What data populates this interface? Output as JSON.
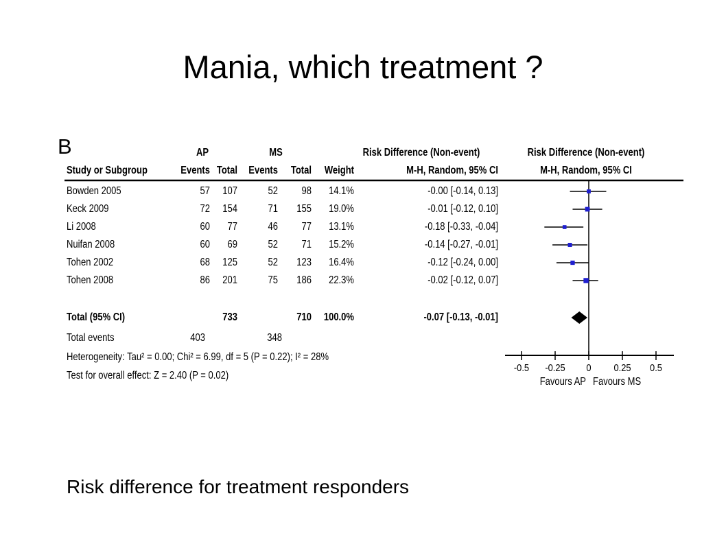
{
  "slide": {
    "title": "Mania, which treatment ?",
    "caption": "Risk difference for treatment responders"
  },
  "colors": {
    "point_marker": "#1f1fd0",
    "ci_line": "#000000",
    "diamond": "#000000"
  },
  "table": {
    "panel_label": "B",
    "group_headers": {
      "ap": "AP",
      "ms": "MS"
    },
    "columns": {
      "study": "Study or Subgroup",
      "ap_events": "Events",
      "ap_total": "Total",
      "ms_events": "Events",
      "ms_total": "Total",
      "weight": "Weight",
      "effect_title": "Risk Difference (Non-event)",
      "effect_method": "M-H, Random, 95% CI"
    },
    "rows": [
      {
        "study": "Bowden 2005",
        "ap_events": "57",
        "ap_total": "107",
        "ms_events": "52",
        "ms_total": "98",
        "weight": "14.1%",
        "ci": "-0.00 [-0.14, 0.13]"
      },
      {
        "study": "Keck 2009",
        "ap_events": "72",
        "ap_total": "154",
        "ms_events": "71",
        "ms_total": "155",
        "weight": "19.0%",
        "ci": "-0.01 [-0.12, 0.10]"
      },
      {
        "study": "Li 2008",
        "ap_events": "60",
        "ap_total": "77",
        "ms_events": "46",
        "ms_total": "77",
        "weight": "13.1%",
        "ci": "-0.18 [-0.33, -0.04]"
      },
      {
        "study": "Nuifan 2008",
        "ap_events": "60",
        "ap_total": "69",
        "ms_events": "52",
        "ms_total": "71",
        "weight": "15.2%",
        "ci": "-0.14 [-0.27, -0.01]"
      },
      {
        "study": "Tohen 2002",
        "ap_events": "68",
        "ap_total": "125",
        "ms_events": "52",
        "ms_total": "123",
        "weight": "16.4%",
        "ci": "-0.12 [-0.24, 0.00]"
      },
      {
        "study": "Tohen 2008",
        "ap_events": "86",
        "ap_total": "201",
        "ms_events": "75",
        "ms_total": "186",
        "weight": "22.3%",
        "ci": "-0.02 [-0.12, 0.07]"
      }
    ],
    "total": {
      "label": "Total (95% CI)",
      "ap_total": "733",
      "ms_total": "710",
      "weight": "100.0%",
      "ci": "-0.07 [-0.13, -0.01]"
    },
    "total_events": {
      "label": "Total events",
      "ap": "403",
      "ms": "348"
    },
    "heterogeneity": "Heterogeneity: Tau² = 0.00; Chi² = 6.99, df = 5 (P = 0.22); I² = 28%",
    "overall_effect": "Test for overall effect: Z = 2.40 (P = 0.02)"
  },
  "chart_data": {
    "type": "scatter",
    "subtype": "forest_plot",
    "title": "Risk Difference (Non-event)",
    "subtitle": "M-H, Random, 95% CI",
    "x_ticks": [
      -0.5,
      -0.25,
      0,
      0.25,
      0.5
    ],
    "x_tick_labels": [
      "-0.5",
      "-0.25",
      "0",
      "0.25",
      "0.5"
    ],
    "xlim": [
      -0.6,
      0.65
    ],
    "grid": false,
    "favours_left": "Favours AP",
    "favours_right": "Favours MS",
    "studies": [
      {
        "label": "Bowden 2005",
        "estimate": -0.0,
        "lower": -0.14,
        "upper": 0.13,
        "weight": 14.1
      },
      {
        "label": "Keck 2009",
        "estimate": -0.01,
        "lower": -0.12,
        "upper": 0.1,
        "weight": 19.0
      },
      {
        "label": "Li 2008",
        "estimate": -0.18,
        "lower": -0.33,
        "upper": -0.04,
        "weight": 13.1
      },
      {
        "label": "Nuifan 2008",
        "estimate": -0.14,
        "lower": -0.27,
        "upper": -0.01,
        "weight": 15.2
      },
      {
        "label": "Tohen 2002",
        "estimate": -0.12,
        "lower": -0.24,
        "upper": 0.0,
        "weight": 16.4
      },
      {
        "label": "Tohen 2008",
        "estimate": -0.02,
        "lower": -0.12,
        "upper": 0.07,
        "weight": 22.3
      }
    ],
    "pooled": {
      "label": "Total (95% CI)",
      "estimate": -0.07,
      "lower": -0.13,
      "upper": -0.01
    }
  }
}
